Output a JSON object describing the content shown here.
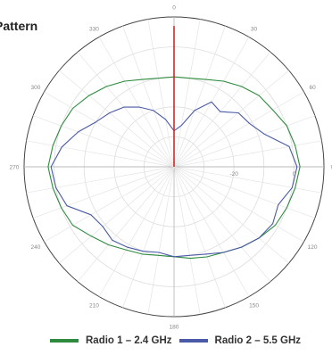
{
  "chart_data": {
    "type": "polar-line",
    "title": "Pattern",
    "angle_ticks": [
      "0",
      "30",
      "60",
      "90",
      "120",
      "150",
      "180",
      "210",
      "240",
      "270",
      "300",
      "330"
    ],
    "radial_ticks": [
      {
        "value": -20,
        "label": "-20"
      },
      {
        "value": 0,
        "label": "0"
      }
    ],
    "r_range": [
      -40,
      10
    ],
    "grid": true,
    "legend_position": "bottom",
    "series": [
      {
        "name": "Radio 1 – 2.4 GHz",
        "color": "#2e8b3e",
        "angles": [
          0,
          10,
          20,
          30,
          40,
          50,
          60,
          70,
          80,
          90,
          100,
          110,
          120,
          130,
          140,
          150,
          160,
          170,
          180,
          190,
          200,
          210,
          220,
          230,
          240,
          250,
          260,
          270,
          280,
          290,
          300,
          310,
          320,
          330,
          340,
          350
        ],
        "values": [
          -10,
          -10,
          -9,
          -7,
          -5,
          -3,
          -2,
          0,
          1,
          2,
          1,
          0,
          -1,
          -3,
          -5,
          -7,
          -8,
          -9,
          -10,
          -10,
          -9,
          -8,
          -6,
          -4,
          -1,
          0,
          1,
          2,
          1,
          0,
          -1,
          -3,
          -5,
          -7,
          -9,
          -10
        ]
      },
      {
        "name": "Radio 2 – 5.5 GHz",
        "color": "#4a5aa8",
        "angles": [
          0,
          10,
          20,
          30,
          40,
          50,
          60,
          70,
          80,
          90,
          100,
          110,
          120,
          130,
          140,
          150,
          160,
          170,
          180,
          190,
          200,
          210,
          220,
          230,
          240,
          250,
          260,
          270,
          280,
          290,
          300,
          310,
          320,
          330,
          340,
          350
        ],
        "values": [
          -28,
          -26,
          -20,
          -15,
          -16,
          -12,
          -11,
          -8,
          -1,
          1,
          0,
          -3,
          -2,
          -3,
          -5,
          -7,
          -9,
          -10,
          -10,
          -11,
          -10,
          -9,
          -8,
          -9,
          -8,
          -2,
          0,
          1,
          -2,
          -6,
          -10,
          -12,
          -14,
          -17,
          -20,
          -24
        ]
      },
      {
        "name": "",
        "color": "#d62728",
        "angles": [
          0
        ],
        "values": [
          7
        ]
      }
    ]
  },
  "legend": {
    "items": [
      {
        "label": "Radio 1 – 2.4 GHz",
        "color": "#2e8b3e"
      },
      {
        "label": "Radio 2 – 5.5 GHz",
        "color": "#4a5aa8"
      }
    ]
  }
}
